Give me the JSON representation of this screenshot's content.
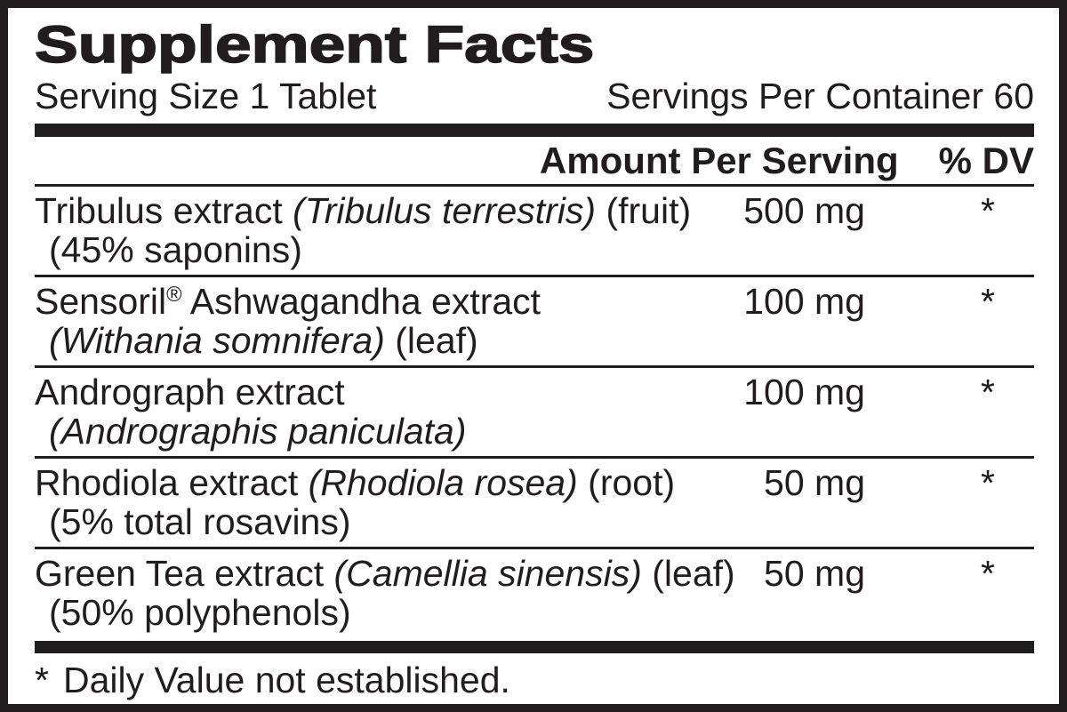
{
  "colors": {
    "ink": "#211d1e",
    "paper": "#ffffff"
  },
  "label": {
    "title": "Supplement Facts",
    "serving_size": "Serving Size 1 Tablet",
    "servings_per_container": "Servings Per Container 60",
    "columns": {
      "amount_header": "Amount Per Serving",
      "dv_header": "% DV"
    },
    "rows": [
      {
        "line1": [
          {
            "text": "Tribulus extract ",
            "style": "regular"
          },
          {
            "text": "(Tribulus terrestris)",
            "style": "italic"
          },
          {
            "text": " (fruit)",
            "style": "regular"
          }
        ],
        "line2": [
          {
            "text": "(45% saponins)",
            "style": "regular"
          }
        ],
        "amount": "500 mg",
        "dv": "*"
      },
      {
        "line1": [
          {
            "text": "Sensoril",
            "style": "regular"
          },
          {
            "text": "®",
            "style": "sup"
          },
          {
            "text": " Ashwagandha extract",
            "style": "regular"
          }
        ],
        "line2": [
          {
            "text": "(Withania somnifera)",
            "style": "italic"
          },
          {
            "text": " (leaf)",
            "style": "regular"
          }
        ],
        "amount": "100 mg",
        "dv": "*"
      },
      {
        "line1": [
          {
            "text": "Andrograph extract",
            "style": "regular"
          }
        ],
        "line2": [
          {
            "text": "(Andrographis paniculata)",
            "style": "italic"
          }
        ],
        "amount": "100 mg",
        "dv": "*"
      },
      {
        "line1": [
          {
            "text": "Rhodiola extract ",
            "style": "regular"
          },
          {
            "text": "(Rhodiola rosea)",
            "style": "italic"
          },
          {
            "text": " (root)",
            "style": "regular"
          }
        ],
        "line2": [
          {
            "text": "(5% total rosavins)",
            "style": "regular"
          }
        ],
        "amount": "50 mg",
        "dv": "*"
      },
      {
        "line1": [
          {
            "text": "Green Tea extract ",
            "style": "regular"
          },
          {
            "text": "(Camellia sinensis)",
            "style": "italic"
          },
          {
            "text": " (leaf)",
            "style": "regular"
          }
        ],
        "line2": [
          {
            "text": "(50% polyphenols)",
            "style": "regular"
          }
        ],
        "amount": "50 mg",
        "dv": "*"
      }
    ],
    "footnote_marker": "*",
    "footnote_text": "Daily Value not established."
  }
}
